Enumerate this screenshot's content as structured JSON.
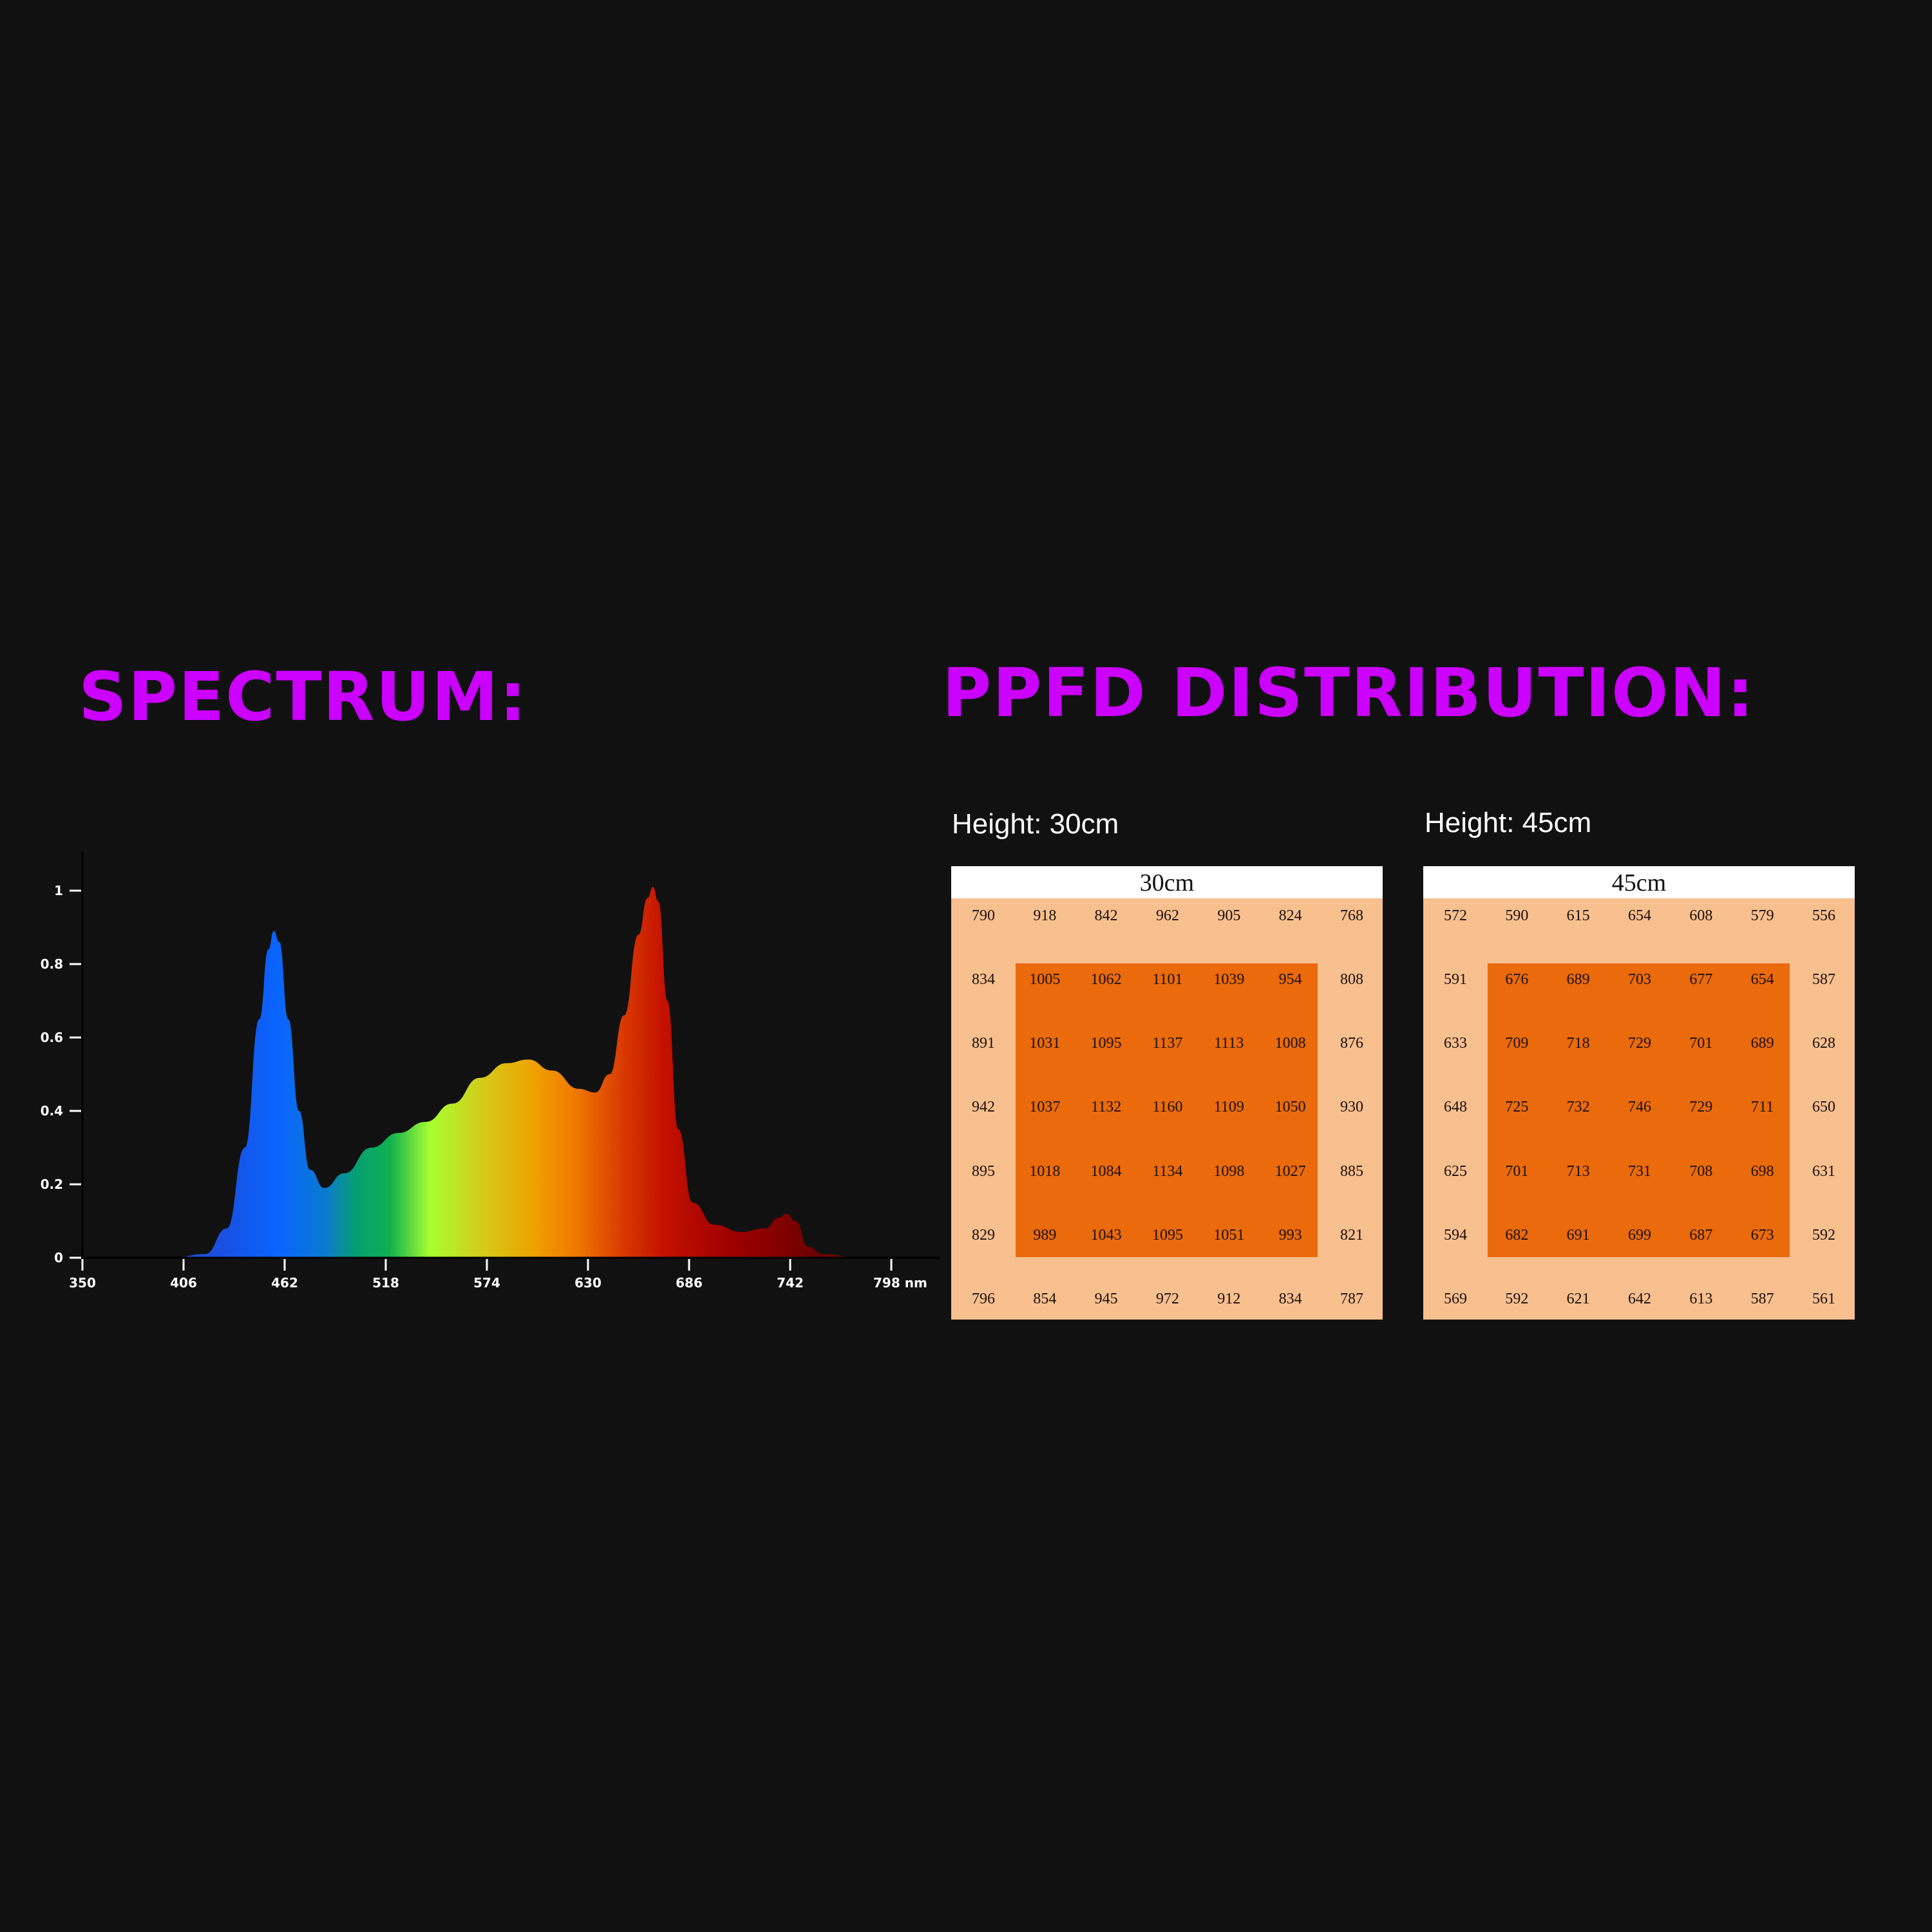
{
  "headings": {
    "spectrum": "SPECTRUM:",
    "ppfd": "PPFD DISTRIBUTION:"
  },
  "colors": {
    "background": "#111112",
    "heading": "#cc00ff",
    "ppfd_outer": "#f8bf8f",
    "ppfd_inner": "#ea6a0c"
  },
  "ppfd": {
    "h30": {
      "label": "Height: 30cm",
      "title": "30cm",
      "rows": [
        [
          "790",
          "918",
          "842",
          "962",
          "905",
          "824",
          "768"
        ],
        [
          "834",
          "1005",
          "1062",
          "1101",
          "1039",
          "954",
          "808"
        ],
        [
          "891",
          "1031",
          "1095",
          "1137",
          "1113",
          "1008",
          "876"
        ],
        [
          "942",
          "1037",
          "1132",
          "1160",
          "1109",
          "1050",
          "930"
        ],
        [
          "895",
          "1018",
          "1084",
          "1134",
          "1098",
          "1027",
          "885"
        ],
        [
          "829",
          "989",
          "1043",
          "1095",
          "1051",
          "993",
          "821"
        ],
        [
          "796",
          "854",
          "945",
          "972",
          "912",
          "834",
          "787"
        ]
      ]
    },
    "h45": {
      "label": "Height: 45cm",
      "title": "45cm",
      "rows": [
        [
          "572",
          "590",
          "615",
          "654",
          "608",
          "579",
          "556"
        ],
        [
          "591",
          "676",
          "689",
          "703",
          "677",
          "654",
          "587"
        ],
        [
          "633",
          "709",
          "718",
          "729",
          "701",
          "689",
          "628"
        ],
        [
          "648",
          "725",
          "732",
          "746",
          "729",
          "711",
          "650"
        ],
        [
          "625",
          "701",
          "713",
          "731",
          "708",
          "698",
          "631"
        ],
        [
          "594",
          "682",
          "691",
          "699",
          "687",
          "673",
          "592"
        ],
        [
          "569",
          "592",
          "621",
          "642",
          "613",
          "587",
          "561"
        ]
      ]
    }
  },
  "chart_data": [
    {
      "type": "area",
      "title": "SPECTRUM:",
      "xlabel": "nm",
      "ylabel": "",
      "x_ticks": [
        350,
        406,
        462,
        518,
        574,
        630,
        686,
        742,
        798
      ],
      "x_tick_labels": [
        "350",
        "406",
        "462",
        "518",
        "574",
        "630",
        "686",
        "742",
        "798 nm"
      ],
      "y_ticks": [
        0,
        0.2,
        0.4,
        0.6,
        0.8,
        1
      ],
      "y_tick_labels": [
        "0",
        "0.2",
        "0.4",
        "0.6",
        "0.8",
        "1"
      ],
      "xlim": [
        350,
        798
      ],
      "ylim": [
        0,
        1.05
      ],
      "grid": false,
      "legend": null,
      "fill": "wavelength-colored gradient (blue→green→yellow→orange→red→dark red)",
      "x": [
        350,
        400,
        418,
        430,
        440,
        448,
        453,
        456,
        459,
        464,
        470,
        476,
        484,
        495,
        510,
        525,
        540,
        555,
        570,
        585,
        597,
        610,
        625,
        634,
        642,
        650,
        658,
        663,
        666,
        669,
        674,
        680,
        688,
        700,
        715,
        728,
        736,
        740,
        745,
        752,
        760,
        780,
        798
      ],
      "y": [
        0.0,
        0.0,
        0.01,
        0.08,
        0.3,
        0.65,
        0.84,
        0.89,
        0.86,
        0.65,
        0.4,
        0.24,
        0.19,
        0.23,
        0.3,
        0.34,
        0.37,
        0.42,
        0.49,
        0.53,
        0.54,
        0.51,
        0.46,
        0.45,
        0.5,
        0.66,
        0.88,
        0.98,
        1.01,
        0.97,
        0.7,
        0.35,
        0.15,
        0.09,
        0.07,
        0.08,
        0.11,
        0.12,
        0.1,
        0.03,
        0.01,
        0.0,
        0.0
      ],
      "peaks": [
        {
          "label": "blue",
          "x": 456,
          "y": 0.89
        },
        {
          "label": "yellow-orange",
          "x": 597,
          "y": 0.54
        },
        {
          "label": "red",
          "x": 666,
          "y": 1.01
        },
        {
          "label": "far-red",
          "x": 740,
          "y": 0.12
        }
      ]
    },
    {
      "type": "heatmap",
      "title": "30cm",
      "subtitle": "Height: 30cm",
      "rows": 7,
      "cols": 7,
      "values": [
        [
          790,
          918,
          842,
          962,
          905,
          824,
          768
        ],
        [
          834,
          1005,
          1062,
          1101,
          1039,
          954,
          808
        ],
        [
          891,
          1031,
          1095,
          1137,
          1113,
          1008,
          876
        ],
        [
          942,
          1037,
          1132,
          1160,
          1109,
          1050,
          930
        ],
        [
          895,
          1018,
          1084,
          1134,
          1098,
          1027,
          885
        ],
        [
          829,
          989,
          1043,
          1095,
          1051,
          993,
          821
        ],
        [
          796,
          854,
          945,
          972,
          912,
          834,
          787
        ]
      ]
    },
    {
      "type": "heatmap",
      "title": "45cm",
      "subtitle": "Height: 45cm",
      "rows": 7,
      "cols": 7,
      "values": [
        [
          572,
          590,
          615,
          654,
          608,
          579,
          556
        ],
        [
          591,
          676,
          689,
          703,
          677,
          654,
          587
        ],
        [
          633,
          709,
          718,
          729,
          701,
          689,
          628
        ],
        [
          648,
          725,
          732,
          746,
          729,
          711,
          650
        ],
        [
          625,
          701,
          713,
          731,
          708,
          698,
          631
        ],
        [
          594,
          682,
          691,
          699,
          687,
          673,
          592
        ],
        [
          569,
          592,
          621,
          642,
          613,
          587,
          561
        ]
      ]
    }
  ]
}
